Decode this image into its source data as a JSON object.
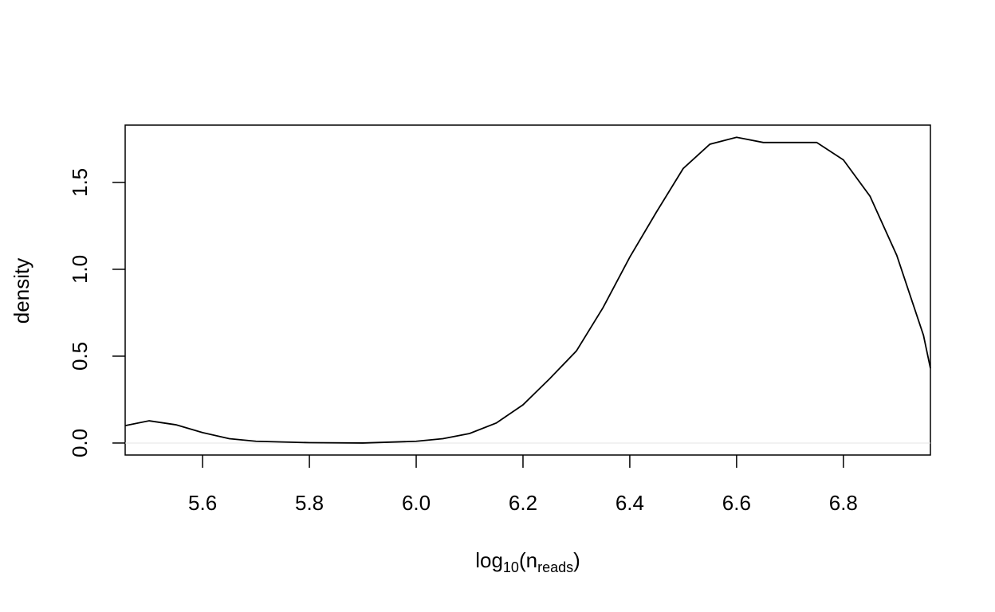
{
  "chart_data": {
    "type": "line",
    "x_label": [
      "log",
      "10",
      "(n",
      "reads",
      ")"
    ],
    "y_label": "density",
    "x": [
      5.455,
      5.5,
      5.55,
      5.6,
      5.65,
      5.7,
      5.8,
      5.9,
      6.0,
      6.05,
      6.1,
      6.15,
      6.2,
      6.25,
      6.3,
      6.35,
      6.4,
      6.45,
      6.5,
      6.55,
      6.6,
      6.65,
      6.7,
      6.75,
      6.8,
      6.85,
      6.9,
      6.95,
      6.963
    ],
    "series": [
      {
        "color": "#000000",
        "values": [
          0.1,
          0.128,
          0.105,
          0.06,
          0.025,
          0.01,
          0.002,
          0.0,
          0.01,
          0.025,
          0.055,
          0.115,
          0.22,
          0.37,
          0.53,
          0.78,
          1.07,
          1.33,
          1.58,
          1.72,
          1.76,
          1.73,
          1.73,
          1.73,
          1.63,
          1.42,
          1.08,
          0.62,
          0.43
        ]
      }
    ],
    "xlim": [
      5.455,
      6.963
    ],
    "ylim": [
      -0.069,
      1.83
    ],
    "xticks": [
      5.6,
      5.8,
      {
        "value": 6.0,
        "label": "6.0"
      },
      6.2,
      6.4,
      6.6,
      6.8
    ],
    "yticks": [
      {
        "value": 0,
        "label": "0.0"
      },
      0.5,
      {
        "value": 1,
        "label": "1.0"
      },
      1.5
    ],
    "zero_line": true
  }
}
